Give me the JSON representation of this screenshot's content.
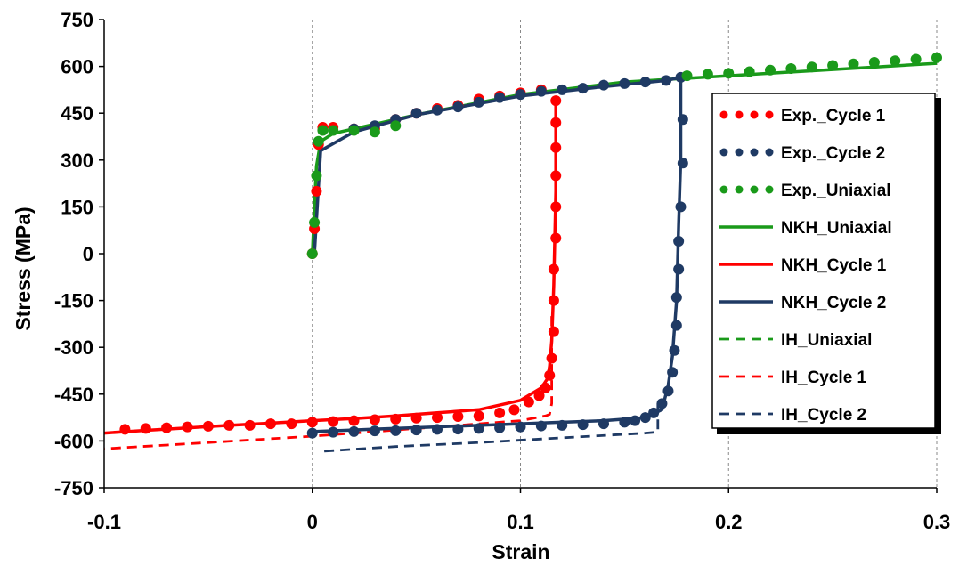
{
  "chart_data": {
    "type": "line",
    "xlabel": "Strain",
    "ylabel": "Stress (MPa)",
    "xlim": [
      -0.1,
      0.3
    ],
    "ylim": [
      -750,
      750
    ],
    "xticks": [
      -0.1,
      0,
      0.1,
      0.2,
      0.3
    ],
    "xtick_labels": [
      "-0.1",
      "0",
      "0.1",
      "0.2",
      "0.3"
    ],
    "yticks": [
      750,
      600,
      450,
      300,
      150,
      0,
      -150,
      -300,
      -450,
      -600,
      -750
    ],
    "ytick_labels": [
      "750",
      "600",
      "450",
      "300",
      "150",
      "0",
      "-150",
      "-300",
      "-450",
      "-600",
      "-750"
    ],
    "grid": "vertical dashed",
    "legend_position": "right",
    "series": [
      {
        "name": "Exp._Cycle 1",
        "color": "#ff0000",
        "style": "markers",
        "x": [
          0,
          0.001,
          0.002,
          0.003,
          0.005,
          0.01,
          0.02,
          0.03,
          0.04,
          0.05,
          0.06,
          0.07,
          0.08,
          0.09,
          0.1,
          0.11,
          0.117,
          0.117,
          0.117,
          0.117,
          0.117,
          0.117,
          0.116,
          0.116,
          0.116,
          0.115,
          0.114,
          0.112,
          0.109,
          0.104,
          0.097,
          0.09,
          0.08,
          0.07,
          0.06,
          0.05,
          0.04,
          0.03,
          0.02,
          0.01,
          0,
          -0.01,
          -0.02,
          -0.03,
          -0.04,
          -0.05,
          -0.06,
          -0.07,
          -0.08,
          -0.09
        ],
        "y": [
          0,
          80,
          200,
          350,
          405,
          405,
          400,
          400,
          430,
          450,
          465,
          475,
          495,
          505,
          515,
          525,
          490,
          420,
          340,
          250,
          150,
          50,
          -50,
          -150,
          -250,
          -335,
          -390,
          -430,
          -455,
          -475,
          -500,
          -510,
          -520,
          -522,
          -525,
          -527,
          -530,
          -532,
          -535,
          -538,
          -540,
          -545,
          -545,
          -550,
          -550,
          -553,
          -555,
          -558,
          -560,
          -563
        ]
      },
      {
        "name": "Exp._Cycle 2",
        "color": "#1f3a64",
        "style": "markers",
        "x": [
          0.02,
          0.03,
          0.04,
          0.05,
          0.06,
          0.07,
          0.08,
          0.09,
          0.1,
          0.11,
          0.12,
          0.13,
          0.14,
          0.15,
          0.16,
          0.17,
          0.177,
          0.178,
          0.178,
          0.177,
          0.176,
          0.176,
          0.175,
          0.175,
          0.174,
          0.173,
          0.171,
          0.168,
          0.164,
          0.16,
          0.155,
          0.15,
          0.14,
          0.13,
          0.12,
          0.11,
          0.1,
          0.09,
          0.08,
          0.07,
          0.06,
          0.05,
          0.04,
          0.03,
          0.02,
          0.01,
          0
        ],
        "y": [
          400,
          410,
          430,
          450,
          460,
          470,
          485,
          500,
          510,
          520,
          525,
          530,
          540,
          545,
          550,
          555,
          565,
          430,
          290,
          150,
          40,
          -50,
          -140,
          -230,
          -310,
          -380,
          -440,
          -480,
          -510,
          -525,
          -535,
          -540,
          -545,
          -548,
          -550,
          -552,
          -555,
          -558,
          -560,
          -562,
          -563,
          -565,
          -567,
          -568,
          -570,
          -572,
          -575
        ]
      },
      {
        "name": "Exp._Uniaxial",
        "color": "#1a9a1a",
        "style": "markers",
        "x": [
          0,
          0.001,
          0.002,
          0.003,
          0.005,
          0.01,
          0.02,
          0.03,
          0.04,
          0.18,
          0.19,
          0.2,
          0.21,
          0.22,
          0.23,
          0.24,
          0.25,
          0.26,
          0.27,
          0.28,
          0.29,
          0.3
        ],
        "y": [
          0,
          100,
          250,
          360,
          395,
          395,
          395,
          390,
          410,
          570,
          575,
          578,
          583,
          588,
          593,
          598,
          603,
          608,
          613,
          618,
          623,
          628
        ]
      },
      {
        "name": "NKH_Uniaxial",
        "color": "#1a9a1a",
        "style": "solid",
        "x": [
          0,
          0.001,
          0.002,
          0.004,
          0.01,
          0.02,
          0.05,
          0.1,
          0.15,
          0.2,
          0.25,
          0.3
        ],
        "y": [
          0,
          150,
          280,
          360,
          385,
          400,
          445,
          510,
          550,
          570,
          590,
          610
        ]
      },
      {
        "name": "NKH_Cycle 1",
        "color": "#ff0000",
        "style": "solid",
        "x": [
          0.117,
          0.117,
          0.116,
          0.115,
          0.114,
          0.113,
          0.11,
          0.1,
          0.08,
          0.06,
          0.04,
          0.02,
          0,
          -0.02,
          -0.04,
          -0.06,
          -0.08,
          -0.1
        ],
        "y": [
          500,
          200,
          -100,
          -280,
          -360,
          -400,
          -430,
          -470,
          -500,
          -510,
          -520,
          -528,
          -535,
          -543,
          -550,
          -558,
          -566,
          -575
        ]
      },
      {
        "name": "NKH_Cycle 2",
        "color": "#1f3a64",
        "style": "solid",
        "x": [
          0.001,
          0.004,
          0.02,
          0.05,
          0.1,
          0.14,
          0.17,
          0.177,
          0.177,
          0.176,
          0.175,
          0.173,
          0.171,
          0.168,
          0.16,
          0.14,
          0.1,
          0.06,
          0.03,
          0
        ],
        "y": [
          0,
          330,
          390,
          445,
          505,
          535,
          555,
          565,
          300,
          100,
          -150,
          -330,
          -420,
          -500,
          -525,
          -535,
          -545,
          -555,
          -562,
          -570
        ]
      },
      {
        "name": "IH_Uniaxial",
        "color": "#1a9a1a",
        "style": "dashed",
        "x": [
          0.001,
          0.004,
          0.02,
          0.05,
          0.1,
          0.15,
          0.177
        ],
        "y": [
          0,
          330,
          390,
          445,
          505,
          545,
          565
        ]
      },
      {
        "name": "IH_Cycle 1",
        "color": "#ff0000",
        "style": "dashed",
        "x": [
          0.115,
          0.115,
          0.114,
          0.112,
          0.1,
          0.05,
          0,
          -0.05,
          -0.1
        ],
        "y": [
          -200,
          -480,
          -515,
          -520,
          -535,
          -560,
          -585,
          -605,
          -625
        ]
      },
      {
        "name": "IH_Cycle 2",
        "color": "#1f3a64",
        "style": "dashed",
        "x": [
          0.166,
          0.166,
          0.165,
          0.16,
          0.12,
          0.08,
          0.04,
          0.005
        ],
        "y": [
          -480,
          -570,
          -572,
          -575,
          -590,
          -605,
          -618,
          -633
        ]
      }
    ]
  }
}
